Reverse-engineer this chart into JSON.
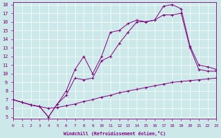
{
  "xlabel": "Windchill (Refroidissement éolien,°C)",
  "bg_color": "#cce8e8",
  "line_color": "#800080",
  "xlim": [
    0,
    23
  ],
  "ylim": [
    5,
    18
  ],
  "xticks": [
    0,
    1,
    2,
    3,
    4,
    5,
    6,
    7,
    8,
    9,
    10,
    11,
    12,
    13,
    14,
    15,
    16,
    17,
    18,
    19,
    20,
    21,
    22,
    23
  ],
  "yticks": [
    5,
    6,
    7,
    8,
    9,
    10,
    11,
    12,
    13,
    14,
    15,
    16,
    17,
    18
  ],
  "line1_x": [
    0,
    1,
    2,
    3,
    4,
    5,
    6,
    7,
    8,
    9,
    10,
    11,
    12,
    13,
    14,
    15,
    16,
    17,
    18,
    19,
    20,
    21,
    22,
    23
  ],
  "line1_y": [
    7.0,
    6.7,
    6.4,
    6.2,
    6.0,
    6.1,
    6.3,
    6.5,
    6.8,
    7.0,
    7.3,
    7.5,
    7.8,
    8.0,
    8.2,
    8.4,
    8.6,
    8.8,
    9.0,
    9.1,
    9.2,
    9.3,
    9.4,
    9.5
  ],
  "line2_x": [
    0,
    1,
    2,
    3,
    4,
    5,
    6,
    7,
    8,
    9,
    10,
    11,
    12,
    13,
    14,
    15,
    16,
    17,
    18,
    19,
    20,
    21,
    22,
    23
  ],
  "line2_y": [
    7.0,
    6.7,
    6.4,
    6.2,
    5.0,
    6.5,
    7.5,
    9.5,
    9.3,
    9.5,
    11.5,
    12.0,
    13.5,
    14.8,
    16.0,
    16.0,
    16.2,
    16.8,
    16.8,
    17.0,
    13.0,
    10.5,
    10.3,
    10.3
  ],
  "line3_x": [
    0,
    1,
    2,
    3,
    4,
    5,
    6,
    7,
    8,
    9,
    10,
    11,
    12,
    13,
    14,
    15,
    16,
    17,
    18,
    19,
    20,
    21,
    22,
    23
  ],
  "line3_y": [
    7.0,
    6.7,
    6.4,
    6.2,
    5.0,
    6.5,
    8.0,
    10.5,
    12.0,
    10.0,
    12.0,
    14.8,
    15.0,
    15.8,
    16.2,
    16.0,
    16.2,
    17.8,
    18.0,
    17.5,
    13.2,
    11.0,
    10.8,
    10.5
  ]
}
